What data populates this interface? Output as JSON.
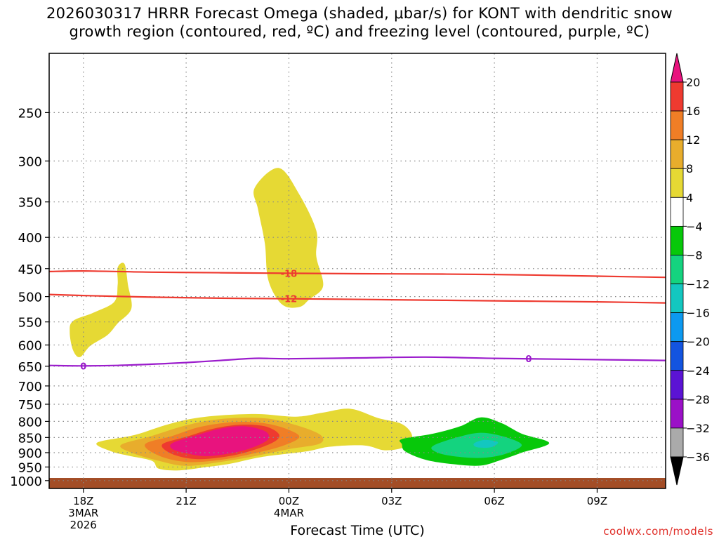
{
  "title_line1": "2026030317 HRRR Forecast Omega (shaded, μbar/s) for KONT with dendritic snow",
  "title_line2": "growth region (contoured, red, ºC) and freezing level (contoured, purple, ºC)",
  "credit": "coolwx.com/models",
  "colors": {
    "isotherm": "#ee3a30",
    "freezing": "#9b1ccc",
    "ground": "#a34d26",
    "grid": "#888888"
  },
  "chart_data": {
    "type": "heatmap",
    "xlabel": "Forecast Time (UTC)",
    "x_ticks": [
      {
        "hour": 0,
        "label": [
          "18Z",
          "3MAR",
          "2026"
        ]
      },
      {
        "hour": 3,
        "label": [
          "21Z"
        ]
      },
      {
        "hour": 6,
        "label": [
          "00Z",
          "4MAR"
        ]
      },
      {
        "hour": 9,
        "label": [
          "03Z"
        ]
      },
      {
        "hour": 12,
        "label": [
          "06Z"
        ]
      },
      {
        "hour": 15,
        "label": [
          "09Z"
        ]
      }
    ],
    "xlim": [
      -1,
      17
    ],
    "y_ticks": [
      250,
      300,
      350,
      400,
      450,
      500,
      550,
      600,
      650,
      700,
      750,
      800,
      850,
      900,
      950,
      1000
    ],
    "ylim": [
      200,
      1030
    ],
    "ground_top_hpa": 990,
    "colorbar": {
      "levels": [
        "20",
        "16",
        "12",
        "8",
        "4",
        "−4",
        "−8",
        "−12",
        "−16",
        "−20",
        "−24",
        "−28",
        "−32",
        "−36"
      ],
      "colors": [
        "#ee3a30",
        "#f07e26",
        "#e8ad2c",
        "#e6d934",
        "#ffffff",
        "#07c80a",
        "#14d37f",
        "#13c7c0",
        "#0c99f0",
        "#1354e0",
        "#5b13d4",
        "#9b10c7",
        "#aaaaaa"
      ],
      "top_arrow": "#e8137e",
      "bottom_arrow": "#000000"
    },
    "contours": [
      {
        "label": "-18",
        "label_hour": 6,
        "points": [
          [
            -1,
            455
          ],
          [
            0,
            454
          ],
          [
            2,
            456
          ],
          [
            4,
            457
          ],
          [
            6,
            458
          ],
          [
            9,
            459
          ],
          [
            12,
            460
          ],
          [
            15,
            463
          ],
          [
            17,
            465
          ]
        ]
      },
      {
        "label": "-12",
        "label_hour": 6,
        "points": [
          [
            -1,
            496
          ],
          [
            0,
            498
          ],
          [
            2,
            501
          ],
          [
            4,
            503
          ],
          [
            6,
            504
          ],
          [
            9,
            506
          ],
          [
            12,
            508
          ],
          [
            15,
            510
          ],
          [
            17,
            512
          ]
        ]
      },
      {
        "label": "0",
        "label_hour": 0,
        "points": [
          [
            -1,
            648
          ],
          [
            0,
            649
          ],
          [
            1,
            648
          ],
          [
            2,
            645
          ],
          [
            3,
            641
          ],
          [
            4,
            636
          ],
          [
            5,
            631
          ],
          [
            6,
            632
          ],
          [
            8,
            630
          ],
          [
            10,
            628
          ],
          [
            12,
            631
          ],
          [
            14,
            633
          ],
          [
            17,
            636
          ]
        ]
      },
      {
        "label": "0",
        "label_hour": 13,
        "points": []
      }
    ],
    "omega_regions": [
      {
        "value": 4,
        "points": [
          [
            -0.4,
            572
          ],
          [
            -0.3,
            548
          ],
          [
            0.3,
            531
          ],
          [
            0.9,
            510
          ],
          [
            1.0,
            478
          ],
          [
            1.0,
            448
          ],
          [
            1.2,
            442
          ],
          [
            1.3,
            478
          ],
          [
            1.4,
            523
          ],
          [
            1.0,
            553
          ],
          [
            0.7,
            578
          ],
          [
            0.2,
            602
          ],
          [
            -0.1,
            628
          ],
          [
            -0.3,
            612
          ]
        ]
      },
      {
        "value": 4,
        "points": [
          [
            5.0,
            332
          ],
          [
            5.7,
            308
          ],
          [
            6.3,
            340
          ],
          [
            6.8,
            390
          ],
          [
            6.8,
            430
          ],
          [
            7.0,
            480
          ],
          [
            6.6,
            505
          ],
          [
            6.3,
            520
          ],
          [
            5.8,
            515
          ],
          [
            5.4,
            470
          ],
          [
            5.3,
            410
          ],
          [
            5.1,
            360
          ]
        ]
      },
      {
        "value": 4,
        "points": [
          [
            0.4,
            867
          ],
          [
            1.5,
            842
          ],
          [
            2.5,
            808
          ],
          [
            3.5,
            787
          ],
          [
            5.0,
            778
          ],
          [
            6.2,
            786
          ],
          [
            7.0,
            774
          ],
          [
            7.8,
            763
          ],
          [
            8.6,
            790
          ],
          [
            9.3,
            808
          ],
          [
            9.6,
            845
          ],
          [
            9.4,
            880
          ],
          [
            8.8,
            892
          ],
          [
            8.2,
            876
          ],
          [
            7.2,
            880
          ],
          [
            6.5,
            896
          ],
          [
            5.2,
            915
          ],
          [
            4.3,
            938
          ],
          [
            3.6,
            950
          ],
          [
            2.8,
            962
          ],
          [
            2.2,
            956
          ],
          [
            2.0,
            928
          ],
          [
            1.3,
            910
          ],
          [
            0.8,
            895
          ]
        ]
      },
      {
        "value": 8,
        "points": [
          [
            1.1,
            874
          ],
          [
            2.0,
            845
          ],
          [
            3.0,
            812
          ],
          [
            4.0,
            793
          ],
          [
            5.2,
            790
          ],
          [
            6.1,
            808
          ],
          [
            6.9,
            840
          ],
          [
            6.9,
            870
          ],
          [
            6.0,
            888
          ],
          [
            5.0,
            912
          ],
          [
            4.0,
            932
          ],
          [
            3.0,
            946
          ],
          [
            2.2,
            928
          ],
          [
            1.4,
            900
          ]
        ]
      },
      {
        "value": 12,
        "points": [
          [
            1.8,
            872
          ],
          [
            2.6,
            845
          ],
          [
            3.4,
            817
          ],
          [
            4.4,
            802
          ],
          [
            5.3,
            806
          ],
          [
            6.0,
            826
          ],
          [
            6.3,
            850
          ],
          [
            5.8,
            878
          ],
          [
            5.0,
            902
          ],
          [
            4.0,
            925
          ],
          [
            3.0,
            932
          ],
          [
            2.2,
            910
          ]
        ]
      },
      {
        "value": 16,
        "points": [
          [
            2.3,
            873
          ],
          [
            3.0,
            848
          ],
          [
            3.8,
            822
          ],
          [
            4.6,
            810
          ],
          [
            5.3,
            815
          ],
          [
            5.7,
            838
          ],
          [
            5.6,
            862
          ],
          [
            5.0,
            890
          ],
          [
            4.2,
            913
          ],
          [
            3.3,
            922
          ],
          [
            2.6,
            905
          ]
        ]
      },
      {
        "value": 20,
        "points": [
          [
            2.6,
            868
          ],
          [
            3.3,
            843
          ],
          [
            4.0,
            822
          ],
          [
            4.7,
            815
          ],
          [
            5.3,
            830
          ],
          [
            5.4,
            855
          ],
          [
            5.0,
            880
          ],
          [
            4.4,
            900
          ],
          [
            3.6,
            912
          ],
          [
            3.0,
            902
          ],
          [
            2.6,
            888
          ]
        ]
      },
      {
        "value": -4,
        "points": [
          [
            9.3,
            855
          ],
          [
            10.2,
            838
          ],
          [
            11.0,
            815
          ],
          [
            11.6,
            788
          ],
          [
            12.2,
            805
          ],
          [
            12.8,
            838
          ],
          [
            13.6,
            868
          ],
          [
            12.8,
            900
          ],
          [
            12.2,
            925
          ],
          [
            11.6,
            945
          ],
          [
            10.8,
            940
          ],
          [
            10.0,
            925
          ],
          [
            9.4,
            896
          ],
          [
            9.3,
            872
          ]
        ]
      },
      {
        "value": -8,
        "points": [
          [
            10.2,
            878
          ],
          [
            10.9,
            850
          ],
          [
            11.6,
            835
          ],
          [
            12.3,
            848
          ],
          [
            12.8,
            875
          ],
          [
            12.3,
            905
          ],
          [
            11.6,
            918
          ],
          [
            10.8,
            912
          ],
          [
            10.3,
            898
          ]
        ]
      },
      {
        "value": -12,
        "points": [
          [
            11.4,
            870
          ],
          [
            11.7,
            858
          ],
          [
            12.1,
            865
          ],
          [
            11.9,
            882
          ],
          [
            11.5,
            882
          ]
        ]
      },
      {
        "value": 4,
        "points": [
          [
            6.9,
            828
          ],
          [
            7.3,
            822
          ],
          [
            7.2,
            834
          ]
        ]
      },
      {
        "value": 4,
        "points": [
          [
            8.8,
            852
          ],
          [
            9.0,
            843
          ],
          [
            9.2,
            860
          ],
          [
            8.9,
            866
          ]
        ]
      }
    ]
  }
}
